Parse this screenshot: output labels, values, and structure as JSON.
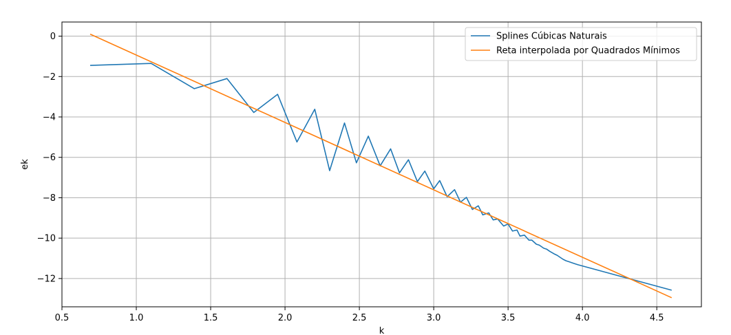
{
  "chart_data": {
    "type": "line",
    "title": "",
    "xlabel": "k",
    "ylabel": "ek",
    "xlim": [
      0.5,
      4.8
    ],
    "ylim": [
      -13.4,
      0.7
    ],
    "grid": true,
    "legend_position": "top-right",
    "x_ticks": [
      0.5,
      1.0,
      1.5,
      2.0,
      2.5,
      3.0,
      3.5,
      4.0,
      4.5
    ],
    "y_ticks": [
      0,
      -2,
      -4,
      -6,
      -8,
      -10,
      -12
    ],
    "x_tick_labels": [
      "0.5",
      "1.0",
      "1.5",
      "2.0",
      "2.5",
      "3.0",
      "3.5",
      "4.0",
      "4.5"
    ],
    "y_tick_labels": [
      "0",
      "−2",
      "−4",
      "−6",
      "−8",
      "−10",
      "−12"
    ],
    "series": [
      {
        "name": "Splines Cúbicas Naturais",
        "color": "#1f77b4",
        "x": [
          0.69,
          1.1,
          1.39,
          1.61,
          1.79,
          1.95,
          2.08,
          2.2,
          2.3,
          2.4,
          2.48,
          2.56,
          2.64,
          2.71,
          2.77,
          2.83,
          2.89,
          2.94,
          3.0,
          3.04,
          3.09,
          3.14,
          3.18,
          3.22,
          3.26,
          3.3,
          3.33,
          3.37,
          3.4,
          3.43,
          3.47,
          3.5,
          3.53,
          3.56,
          3.58,
          3.61,
          3.64,
          3.66,
          3.69,
          3.71,
          3.74,
          3.76,
          3.78,
          3.81,
          3.83,
          3.85,
          3.87,
          3.89,
          3.91,
          3.93,
          3.95,
          3.97,
          4.6
        ],
        "y": [
          -1.45,
          -1.35,
          -2.6,
          -2.1,
          -3.78,
          -2.88,
          -5.24,
          -3.62,
          -6.66,
          -4.3,
          -6.27,
          -4.95,
          -6.42,
          -5.58,
          -6.77,
          -6.12,
          -7.2,
          -6.68,
          -7.56,
          -7.15,
          -7.95,
          -7.6,
          -8.22,
          -7.98,
          -8.58,
          -8.4,
          -8.85,
          -8.75,
          -9.1,
          -9.05,
          -9.4,
          -9.3,
          -9.65,
          -9.6,
          -9.9,
          -9.85,
          -10.1,
          -10.1,
          -10.3,
          -10.35,
          -10.5,
          -10.55,
          -10.65,
          -10.78,
          -10.85,
          -10.95,
          -11.05,
          -11.12,
          -11.17,
          -11.22,
          -11.27,
          -11.32,
          -12.58
        ]
      },
      {
        "name": "Reta interpolada por Quadrados Mínimos",
        "color": "#ff7f0e",
        "x": [
          0.69,
          4.6
        ],
        "y": [
          0.1,
          -12.95
        ]
      }
    ]
  }
}
